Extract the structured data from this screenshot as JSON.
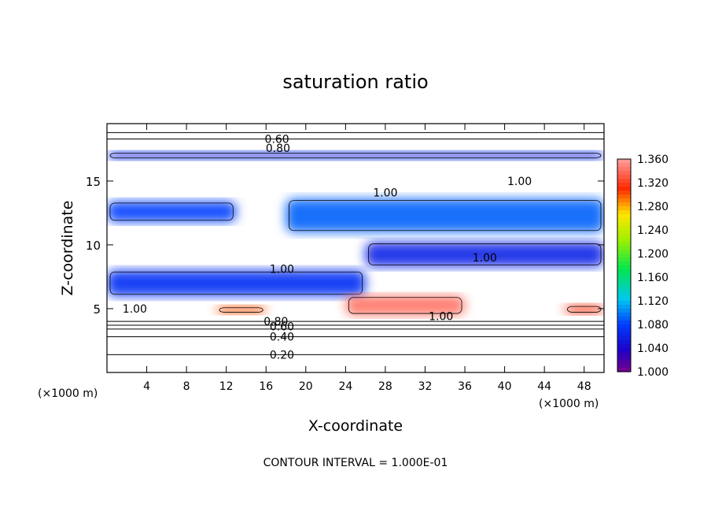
{
  "chart_data": {
    "type": "heatmap",
    "title": "saturation ratio",
    "xlabel": "X-coordinate",
    "ylabel": "Z-coordinate",
    "x_unit_label_left": "(×1000 m)",
    "x_unit_label_right": "(×1000 m)",
    "footer": "CONTOUR INTERVAL = 1.000E-01",
    "xlim": [
      0,
      50
    ],
    "ylim": [
      0,
      19.5
    ],
    "x_ticks": [
      4,
      8,
      12,
      16,
      20,
      24,
      28,
      32,
      36,
      40,
      44,
      48
    ],
    "y_ticks": [
      5,
      10,
      15
    ],
    "colorbar": {
      "min": 1.0,
      "max": 1.36,
      "ticks": [
        "1.360",
        "1.320",
        "1.280",
        "1.240",
        "1.200",
        "1.160",
        "1.120",
        "1.080",
        "1.040",
        "1.000"
      ]
    },
    "contour_labels": [
      {
        "text": "0.60",
        "x": 17.1,
        "y": 18.3
      },
      {
        "text": "0.80",
        "x": 17.2,
        "y": 17.6
      },
      {
        "text": "1.00",
        "x": 28.0,
        "y": 14.1
      },
      {
        "text": "1.00",
        "x": 41.5,
        "y": 15.0
      },
      {
        "text": "1.00",
        "x": 17.6,
        "y": 8.1
      },
      {
        "text": "1.00",
        "x": 38.0,
        "y": 9.0
      },
      {
        "text": "1.00",
        "x": 2.8,
        "y": 5.0
      },
      {
        "text": "1.00",
        "x": 33.6,
        "y": 4.4
      },
      {
        "text": "0.80",
        "x": 17.0,
        "y": 4.0
      },
      {
        "text": "0.60",
        "x": 17.6,
        "y": 3.6
      },
      {
        "text": "0.40",
        "x": 17.6,
        "y": 2.8
      },
      {
        "text": "0.20",
        "x": 17.6,
        "y": 1.4
      }
    ],
    "supersaturated_regions": [
      {
        "x": [
          0,
          50
        ],
        "z": [
          16.7,
          17.3
        ],
        "value": 1.06
      },
      {
        "x": [
          0,
          13
        ],
        "z": [
          11.8,
          13.4
        ],
        "value": 1.08
      },
      {
        "x": [
          18,
          50
        ],
        "z": [
          11.0,
          13.6
        ],
        "value": 1.09
      },
      {
        "x": [
          0,
          26
        ],
        "z": [
          6.0,
          8.0
        ],
        "value": 1.07
      },
      {
        "x": [
          26,
          50
        ],
        "z": [
          8.3,
          10.2
        ],
        "value": 1.06
      },
      {
        "x": [
          24,
          36
        ],
        "z": [
          4.5,
          6.0
        ],
        "value": 1.34
      },
      {
        "x": [
          11,
          16
        ],
        "z": [
          4.6,
          5.2
        ],
        "value": 1.3
      },
      {
        "x": [
          46,
          50
        ],
        "z": [
          4.6,
          5.3
        ],
        "value": 1.32
      }
    ]
  }
}
